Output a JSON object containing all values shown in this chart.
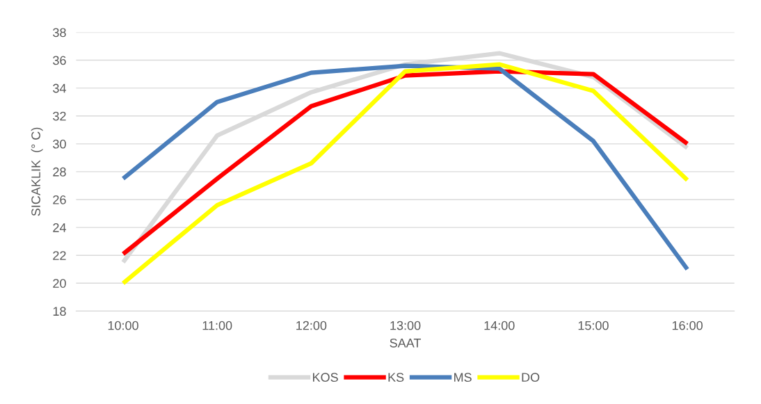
{
  "chart_data": {
    "type": "line",
    "xlabel": "SAAT",
    "ylabel": "SICAKLIK  (° C)",
    "categories": [
      "10:00",
      "11:00",
      "12:00",
      "13:00",
      "14:00",
      "15:00",
      "16:00"
    ],
    "series": [
      {
        "name": "KOS",
        "color": "#d9d9d9",
        "values": [
          21.5,
          30.6,
          33.7,
          35.7,
          36.5,
          34.8,
          29.7
        ]
      },
      {
        "name": "KS",
        "color": "#ff0000",
        "values": [
          22.1,
          27.5,
          32.7,
          34.9,
          35.2,
          35.0,
          30.0
        ]
      },
      {
        "name": "MS",
        "color": "#4a7ebb",
        "values": [
          27.5,
          33.0,
          35.1,
          35.6,
          35.4,
          30.2,
          21.0
        ]
      },
      {
        "name": "DO",
        "color": "#ffff00",
        "values": [
          20.0,
          25.6,
          28.6,
          35.2,
          35.7,
          33.8,
          27.4
        ]
      }
    ],
    "ylim": [
      18,
      38
    ],
    "yticks": [
      18,
      20,
      22,
      24,
      26,
      28,
      30,
      32,
      34,
      36,
      38
    ],
    "grid": "y",
    "legend": "bottom",
    "marker": "none",
    "line_style": "solid"
  }
}
